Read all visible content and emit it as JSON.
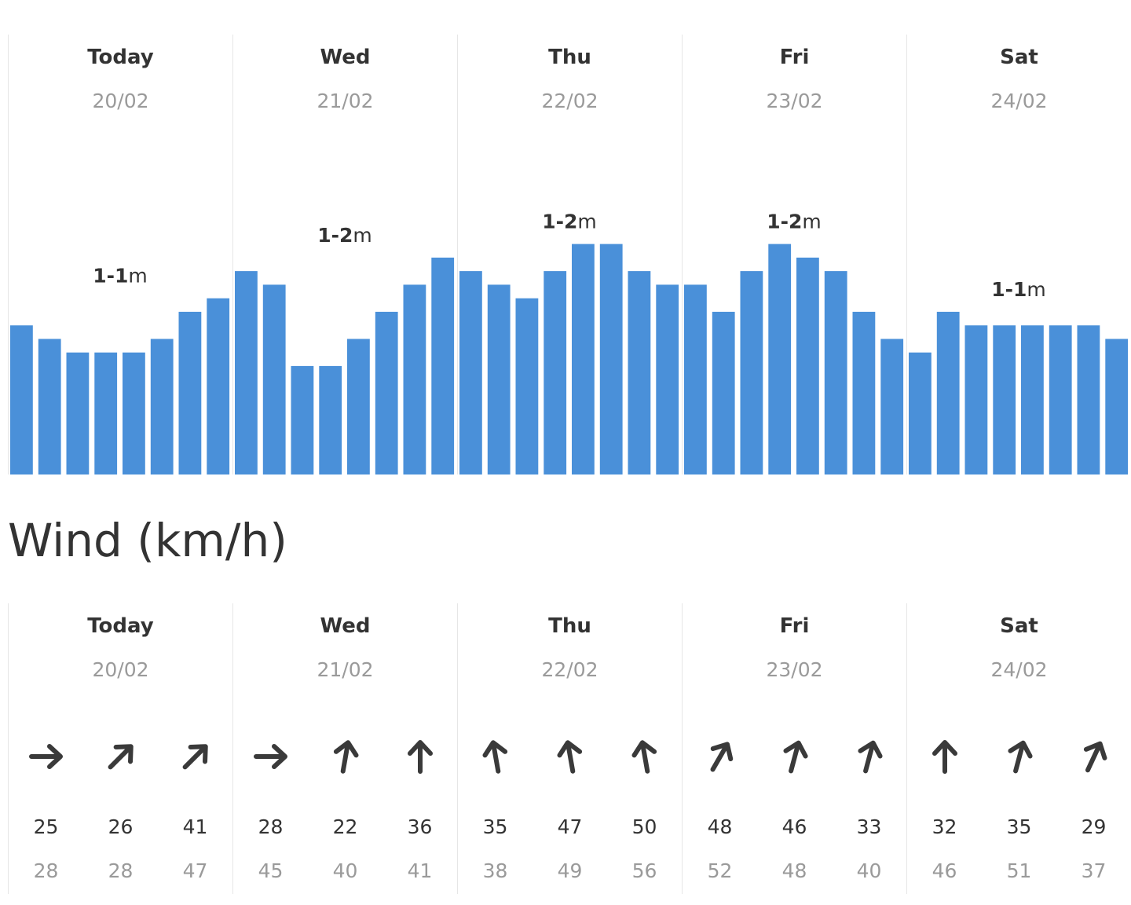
{
  "days": [
    {
      "name": "Today",
      "date": "20/02"
    },
    {
      "name": "Wed",
      "date": "21/02"
    },
    {
      "name": "Thu",
      "date": "22/02"
    },
    {
      "name": "Fri",
      "date": "23/02"
    },
    {
      "name": "Sat",
      "date": "24/02"
    }
  ],
  "swell": {
    "labels": [
      {
        "range": "1-1",
        "unit": "m"
      },
      {
        "range": "1-2",
        "unit": "m"
      },
      {
        "range": "1-2",
        "unit": "m"
      },
      {
        "range": "1-2",
        "unit": "m"
      },
      {
        "range": "1-1",
        "unit": "m"
      }
    ]
  },
  "chart_data": {
    "type": "bar",
    "color": "#4a90d9",
    "values": [
      11,
      10,
      9,
      9,
      9,
      10,
      12,
      13,
      15,
      14,
      8,
      8,
      10,
      12,
      14,
      16,
      15,
      14,
      13,
      15,
      17,
      17,
      15,
      14,
      14,
      12,
      15,
      17,
      16,
      15,
      12,
      10,
      9,
      12,
      11,
      11,
      11,
      11,
      11,
      10
    ],
    "ylim": [
      0,
      35
    ]
  },
  "wind": {
    "title": "Wind (km/h)",
    "entries": [
      {
        "dir": 90,
        "speed": "25",
        "gust": "28"
      },
      {
        "dir": 45,
        "speed": "26",
        "gust": "28"
      },
      {
        "dir": 45,
        "speed": "41",
        "gust": "47"
      },
      {
        "dir": 90,
        "speed": "28",
        "gust": "45"
      },
      {
        "dir": 10,
        "speed": "22",
        "gust": "40"
      },
      {
        "dir": 0,
        "speed": "36",
        "gust": "41"
      },
      {
        "dir": -10,
        "speed": "35",
        "gust": "38"
      },
      {
        "dir": -10,
        "speed": "47",
        "gust": "49"
      },
      {
        "dir": -10,
        "speed": "50",
        "gust": "56"
      },
      {
        "dir": 30,
        "speed": "48",
        "gust": "52"
      },
      {
        "dir": 15,
        "speed": "46",
        "gust": "48"
      },
      {
        "dir": 15,
        "speed": "33",
        "gust": "40"
      },
      {
        "dir": 0,
        "speed": "32",
        "gust": "46"
      },
      {
        "dir": 15,
        "speed": "35",
        "gust": "51"
      },
      {
        "dir": 25,
        "speed": "29",
        "gust": "37"
      }
    ]
  }
}
